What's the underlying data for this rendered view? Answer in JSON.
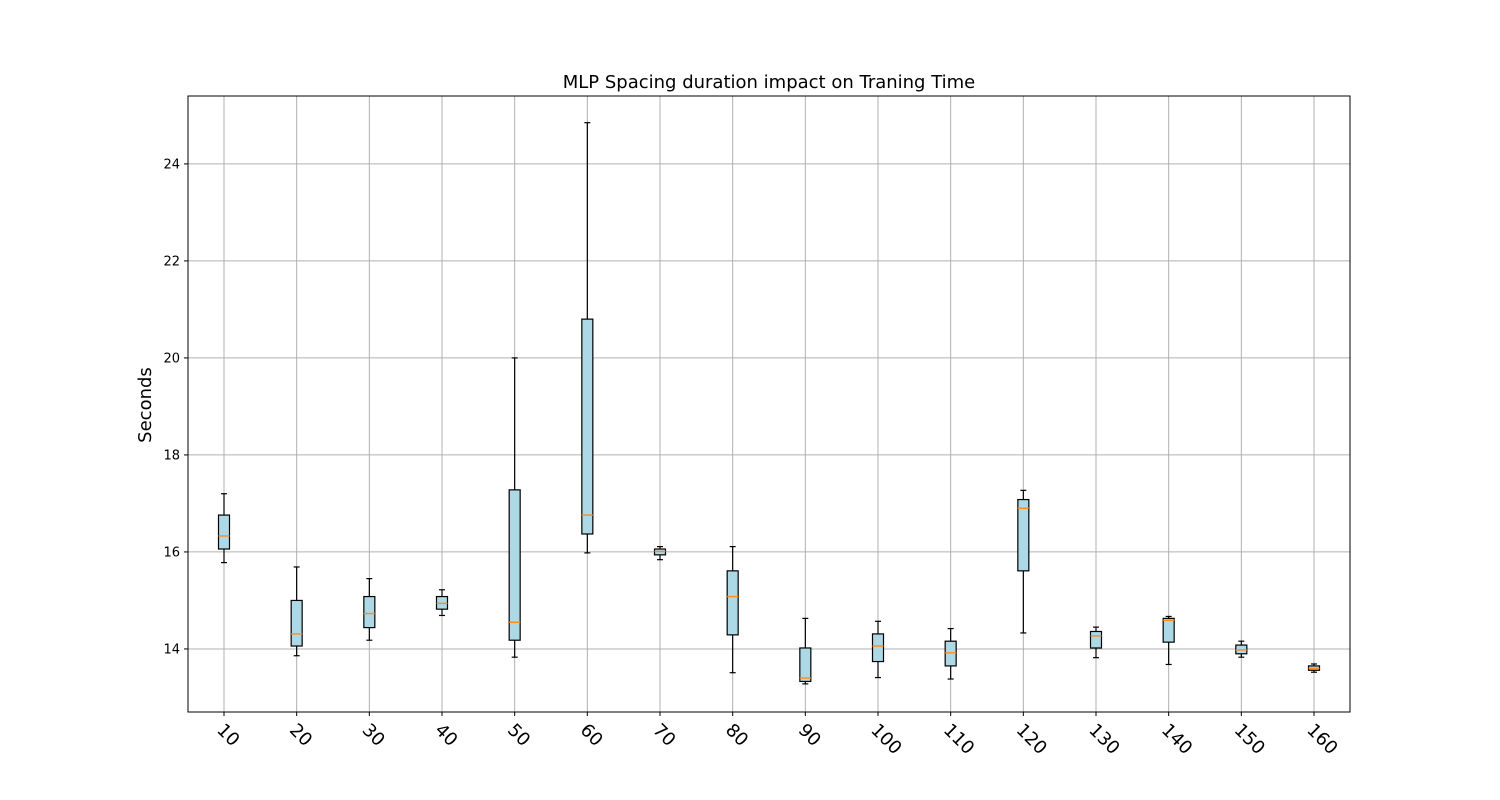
{
  "chart_data": {
    "type": "box",
    "title": "MLP Spacing duration impact on Traning Time",
    "xlabel": "",
    "ylabel": "Seconds",
    "ylim": [
      12.7,
      25.4
    ],
    "yticks": [
      14,
      16,
      18,
      20,
      22,
      24
    ],
    "grid": true,
    "box_color": "#add8e6",
    "median_color": "#ff8c1a",
    "categories": [
      "10",
      "20",
      "30",
      "40",
      "50",
      "60",
      "70",
      "80",
      "90",
      "100",
      "110",
      "120",
      "130",
      "140",
      "150",
      "160"
    ],
    "boxes": [
      {
        "min": 15.78,
        "q1": 16.06,
        "median": 16.33,
        "q3": 16.76,
        "max": 17.2
      },
      {
        "min": 13.86,
        "q1": 14.06,
        "median": 14.31,
        "q3": 15.0,
        "max": 15.69
      },
      {
        "min": 14.18,
        "q1": 14.44,
        "median": 14.73,
        "q3": 15.08,
        "max": 15.45
      },
      {
        "min": 14.69,
        "q1": 14.82,
        "median": 14.94,
        "q3": 15.08,
        "max": 15.22
      },
      {
        "min": 13.83,
        "q1": 14.18,
        "median": 14.55,
        "q3": 17.28,
        "max": 20.0
      },
      {
        "min": 15.98,
        "q1": 16.37,
        "median": 16.76,
        "q3": 20.8,
        "max": 24.85
      },
      {
        "min": 15.84,
        "q1": 15.94,
        "median": 16.01,
        "q3": 16.06,
        "max": 16.11
      },
      {
        "min": 13.51,
        "q1": 14.29,
        "median": 15.08,
        "q3": 15.61,
        "max": 16.11
      },
      {
        "min": 13.28,
        "q1": 13.33,
        "median": 13.4,
        "q3": 14.02,
        "max": 14.63
      },
      {
        "min": 13.41,
        "q1": 13.74,
        "median": 14.06,
        "q3": 14.31,
        "max": 14.57
      },
      {
        "min": 13.38,
        "q1": 13.65,
        "median": 13.92,
        "q3": 14.16,
        "max": 14.42
      },
      {
        "min": 14.33,
        "q1": 15.61,
        "median": 16.9,
        "q3": 17.08,
        "max": 17.27
      },
      {
        "min": 13.82,
        "q1": 14.02,
        "median": 14.27,
        "q3": 14.36,
        "max": 14.45
      },
      {
        "min": 13.68,
        "q1": 14.14,
        "median": 14.59,
        "q3": 14.63,
        "max": 14.67
      },
      {
        "min": 13.83,
        "q1": 13.9,
        "median": 13.98,
        "q3": 14.08,
        "max": 14.16
      },
      {
        "min": 13.52,
        "q1": 13.56,
        "median": 13.6,
        "q3": 13.65,
        "max": 13.69
      }
    ]
  }
}
